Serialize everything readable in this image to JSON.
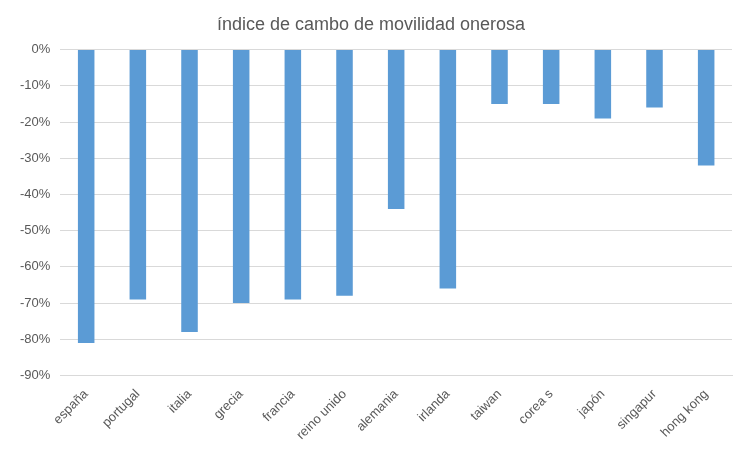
{
  "chart_data": {
    "type": "bar",
    "title": "índice de cambo de movilidad onerosa",
    "categories": [
      "españa",
      "portugal",
      "italia",
      "grecia",
      "francia",
      "reino unido",
      "alemania",
      "irlanda",
      "taiwan",
      "corea s",
      "japón",
      "singapur",
      "hong kong"
    ],
    "values": [
      -81,
      -69,
      -78,
      -70,
      -69,
      -68,
      -44,
      -66,
      -15,
      -15,
      -19,
      -16,
      -32
    ],
    "color": "#5b9bd5",
    "ylim": [
      -90,
      0
    ],
    "yticks": [
      {
        "value": -90,
        "label": "-90%"
      },
      {
        "value": -80,
        "label": "-80%"
      },
      {
        "value": -70,
        "label": "-70%"
      },
      {
        "value": -60,
        "label": "-60%"
      },
      {
        "value": -50,
        "label": "-50%"
      },
      {
        "value": -40,
        "label": "-40%"
      },
      {
        "value": -30,
        "label": "-30%"
      },
      {
        "value": -20,
        "label": "-20%"
      },
      {
        "value": -10,
        "label": "-10%"
      },
      {
        "value": 0,
        "label": "0%"
      }
    ],
    "grid": true
  }
}
